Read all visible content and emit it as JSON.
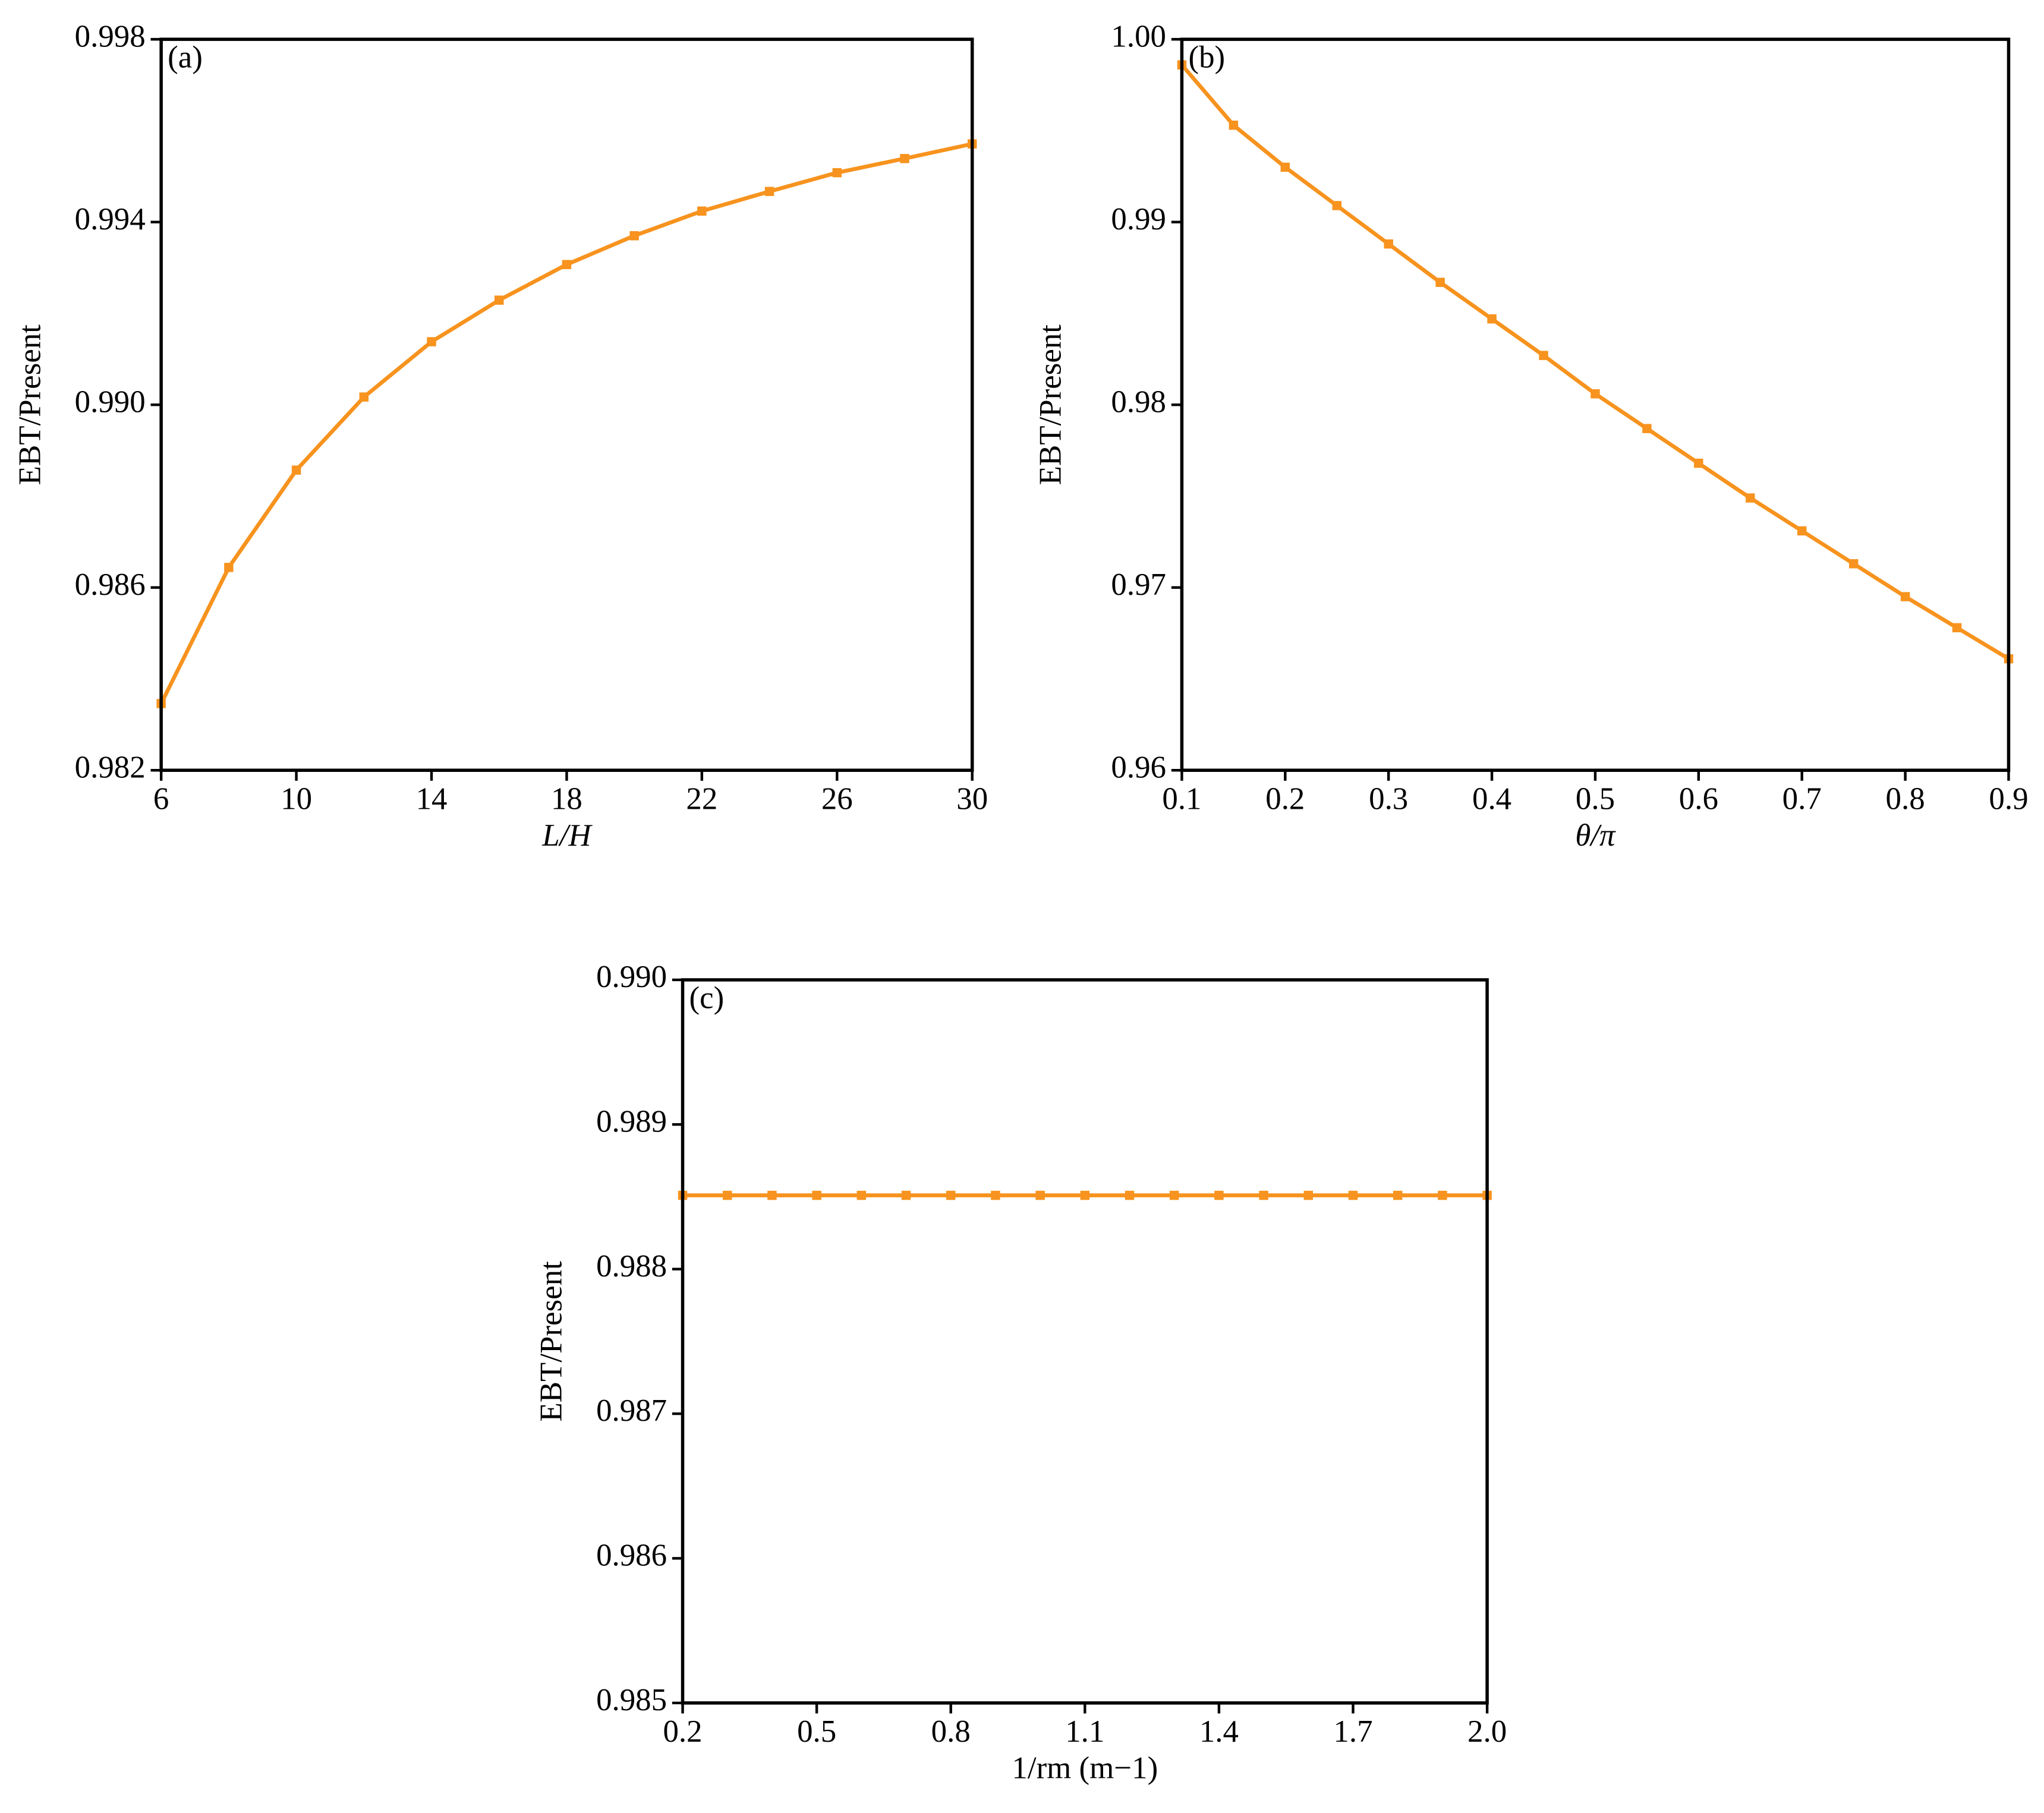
{
  "chart_data": [
    {
      "type": "line",
      "panel_label": "(a)",
      "xlabel": "L/H",
      "ylabel": "EBT/Present",
      "x": [
        6,
        8,
        10,
        12,
        14,
        16,
        18,
        20,
        22,
        24,
        26,
        28,
        30
      ],
      "values": [
        0.98346,
        0.98644,
        0.98857,
        0.99017,
        0.99138,
        0.99229,
        0.99307,
        0.9937,
        0.99424,
        0.99467,
        0.99508,
        0.99539,
        0.99571
      ],
      "color": "#f7931e",
      "xlim": [
        6,
        30
      ],
      "xticks": [
        6,
        10,
        14,
        18,
        22,
        26,
        30
      ],
      "ylim": [
        0.982,
        0.998
      ],
      "yticks": [
        0.982,
        0.986,
        {
          "value": 0.99,
          "label": "0.990"
        },
        0.994,
        0.998
      ]
    },
    {
      "type": "line",
      "panel_label": "(b)",
      "xlabel": "θ/π",
      "ylabel": "EBT/Present",
      "x": [
        0.1,
        0.15,
        0.2,
        0.25,
        0.3,
        0.35,
        0.4,
        0.45,
        0.5,
        0.55,
        0.6,
        0.65,
        0.7,
        0.75,
        0.8,
        0.85,
        0.9
      ],
      "values": [
        0.9986,
        0.9953,
        0.993,
        0.9909,
        0.9888,
        0.9867,
        0.9847,
        0.9827,
        0.9806,
        0.9787,
        0.9768,
        0.9749,
        0.9731,
        0.9713,
        0.9695,
        0.9678,
        0.9661
      ],
      "color": "#f7931e",
      "xlim": [
        0.1,
        0.9
      ],
      "xticks": [
        0.1,
        0.2,
        0.3,
        0.4,
        0.5,
        0.6,
        0.7,
        0.8,
        0.9
      ],
      "ylim": [
        0.96,
        1.0
      ],
      "yticks": [
        0.96,
        0.97,
        0.98,
        0.99,
        {
          "value": 1.0,
          "label": "1.00"
        }
      ]
    },
    {
      "type": "line",
      "panel_label": "(c)",
      "xlabel": "1/rm (m−1)",
      "ylabel": "EBT/Present",
      "x": [
        0.2,
        0.3,
        0.4,
        0.5,
        0.6,
        0.7,
        0.8,
        0.9,
        1.0,
        1.1,
        1.2,
        1.3,
        1.4,
        1.5,
        1.6,
        1.7,
        1.8,
        1.9,
        2.0
      ],
      "values": [
        0.98851,
        0.98851,
        0.98851,
        0.98851,
        0.98851,
        0.98851,
        0.98851,
        0.98851,
        0.98851,
        0.98851,
        0.98851,
        0.98851,
        0.98851,
        0.98851,
        0.98851,
        0.98851,
        0.98851,
        0.98851,
        0.98851
      ],
      "color": "#f7931e",
      "xlim": [
        0.2,
        2.0
      ],
      "xticks": [
        0.2,
        0.5,
        0.8,
        1.1,
        1.4,
        1.7,
        {
          "value": 2.0,
          "label": "2.0"
        }
      ],
      "ylim": [
        0.985,
        0.99
      ],
      "yticks": [
        0.985,
        0.986,
        0.987,
        0.988,
        0.989,
        {
          "value": 0.99,
          "label": "0.990"
        }
      ]
    }
  ]
}
